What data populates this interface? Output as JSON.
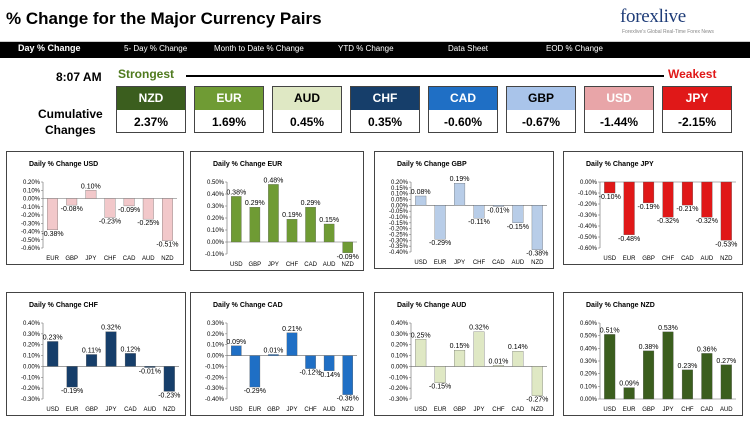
{
  "header": {
    "title": "% Change for the Major Currency Pairs",
    "logo_text": "forexlive",
    "logo_sub": "Forexlive's Global Real-Time Forex News"
  },
  "nav": [
    {
      "label": "Day % Change",
      "active": true
    },
    {
      "label": "5- Day % Change",
      "active": false
    },
    {
      "label": "Month to Date % Change",
      "active": false
    },
    {
      "label": "YTD % Change",
      "active": false
    },
    {
      "label": "Data Sheet",
      "active": false
    },
    {
      "label": "EOD % Change",
      "active": false
    }
  ],
  "summary": {
    "time": "8:07 AM",
    "cumulative_line1": "Cumulative",
    "cumulative_line2": "Changes",
    "strongest": "Strongest",
    "weakest": "Weakest",
    "currencies": [
      {
        "code": "NZD",
        "value": "2.37%",
        "color": "#3b5e1e"
      },
      {
        "code": "EUR",
        "value": "1.69%",
        "color": "#6f9b34"
      },
      {
        "code": "AUD",
        "value": "0.45%",
        "color": "#dfe8c4",
        "text_color": "#000000"
      },
      {
        "code": "CHF",
        "value": "0.35%",
        "color": "#163e6a"
      },
      {
        "code": "CAD",
        "value": "-0.60%",
        "color": "#1f6fc5"
      },
      {
        "code": "GBP",
        "value": "-0.67%",
        "color": "#a9c4ea",
        "text_color": "#000000"
      },
      {
        "code": "USD",
        "value": "-1.44%",
        "color": "#e8a5a8"
      },
      {
        "code": "JPY",
        "value": "-2.15%",
        "color": "#e01818"
      }
    ]
  },
  "chart_data": [
    {
      "type": "bar",
      "title": "Daily % Change USD",
      "categories": [
        "EUR",
        "GBP",
        "JPY",
        "CHF",
        "CAD",
        "AUD",
        "NZD"
      ],
      "values": [
        -0.38,
        -0.08,
        0.1,
        -0.23,
        -0.09,
        -0.25,
        -0.51
      ],
      "labels": [
        "-0.38%",
        "-0.08%",
        "0.10%",
        "-0.23%",
        "-0.09%",
        "-0.25%",
        "-0.51%"
      ],
      "ticks": [
        "0.20%",
        "0.10%",
        "0.00%",
        "-0.10%",
        "-0.20%",
        "-0.30%",
        "-0.40%",
        "-0.50%",
        "-0.60%"
      ],
      "ylim": [
        -0.6,
        0.2
      ],
      "color": "#f2c8ca"
    },
    {
      "type": "bar",
      "title": "Daily % Change EUR",
      "categories": [
        "USD",
        "GBP",
        "JPY",
        "CHF",
        "CAD",
        "AUD",
        "NZD"
      ],
      "values": [
        0.38,
        0.29,
        0.48,
        0.19,
        0.29,
        0.15,
        -0.09
      ],
      "labels": [
        "0.38%",
        "0.29%",
        "0.48%",
        "0.19%",
        "0.29%",
        "0.15%",
        "-0.09%"
      ],
      "ticks": [
        "0.50%",
        "0.40%",
        "0.30%",
        "0.20%",
        "0.10%",
        "0.00%",
        "-0.10%"
      ],
      "ylim": [
        -0.1,
        0.5
      ],
      "color": "#6f9b34"
    },
    {
      "type": "bar",
      "title": "Daily % Change GBP",
      "categories": [
        "USD",
        "EUR",
        "JPY",
        "CHF",
        "CAD",
        "AUD",
        "NZD"
      ],
      "values": [
        0.08,
        -0.29,
        0.19,
        -0.11,
        -0.01,
        -0.15,
        -0.38
      ],
      "labels": [
        "0.08%",
        "-0.29%",
        "0.19%",
        "-0.11%",
        "-0.01%",
        "-0.15%",
        "-0.38%"
      ],
      "ticks": [
        "0.20%",
        "0.15%",
        "0.10%",
        "0.05%",
        "0.00%",
        "-0.05%",
        "-0.10%",
        "-0.15%",
        "-0.20%",
        "-0.25%",
        "-0.30%",
        "-0.35%",
        "-0.40%"
      ],
      "ylim": [
        -0.4,
        0.2
      ],
      "color": "#b8cde8"
    },
    {
      "type": "bar",
      "title": "Daily % Change JPY",
      "categories": [
        "USD",
        "EUR",
        "GBP",
        "CHF",
        "CAD",
        "AUD",
        "NZD"
      ],
      "values": [
        -0.1,
        -0.48,
        -0.19,
        -0.32,
        -0.21,
        -0.32,
        -0.53
      ],
      "labels": [
        "-0.10%",
        "-0.48%",
        "-0.19%",
        "-0.32%",
        "-0.21%",
        "-0.32%",
        "-0.53%"
      ],
      "ticks": [
        "0.00%",
        "-0.10%",
        "-0.20%",
        "-0.30%",
        "-0.40%",
        "-0.50%",
        "-0.60%"
      ],
      "ylim": [
        -0.6,
        0.0
      ],
      "color": "#e01818"
    },
    {
      "type": "bar",
      "title": "Daily % Change CHF",
      "categories": [
        "USD",
        "EUR",
        "GBP",
        "JPY",
        "CAD",
        "AUD",
        "NZD"
      ],
      "values": [
        0.23,
        -0.19,
        0.11,
        0.32,
        0.12,
        -0.01,
        -0.23
      ],
      "labels": [
        "0.23%",
        "-0.19%",
        "0.11%",
        "0.32%",
        "0.12%",
        "-0.01%",
        "-0.23%"
      ],
      "ticks": [
        "0.40%",
        "0.30%",
        "0.20%",
        "0.10%",
        "0.00%",
        "-0.10%",
        "-0.20%",
        "-0.30%"
      ],
      "ylim": [
        -0.3,
        0.4
      ],
      "color": "#163e6a"
    },
    {
      "type": "bar",
      "title": "Daily % Change CAD",
      "categories": [
        "USD",
        "EUR",
        "GBP",
        "JPY",
        "CHF",
        "AUD",
        "NZD"
      ],
      "values": [
        0.09,
        -0.29,
        0.01,
        0.21,
        -0.12,
        -0.14,
        -0.36
      ],
      "labels": [
        "0.09%",
        "-0.29%",
        "0.01%",
        "0.21%",
        "-0.12%",
        "-0.14%",
        "-0.36%"
      ],
      "ticks": [
        "0.30%",
        "0.20%",
        "0.10%",
        "0.00%",
        "-0.10%",
        "-0.20%",
        "-0.30%",
        "-0.40%"
      ],
      "ylim": [
        -0.4,
        0.3
      ],
      "color": "#1f6fc5"
    },
    {
      "type": "bar",
      "title": "Daily % Change AUD",
      "categories": [
        "USD",
        "EUR",
        "GBP",
        "JPY",
        "CHF",
        "CAD",
        "NZD"
      ],
      "values": [
        0.25,
        -0.15,
        0.15,
        0.32,
        0.01,
        0.14,
        -0.27
      ],
      "labels": [
        "0.25%",
        "-0.15%",
        "0.15%",
        "0.32%",
        "0.01%",
        "0.14%",
        "-0.27%"
      ],
      "ticks": [
        "0.40%",
        "0.30%",
        "0.20%",
        "0.10%",
        "0.00%",
        "-0.10%",
        "-0.20%",
        "-0.30%"
      ],
      "ylim": [
        -0.3,
        0.4
      ],
      "color": "#dfe8c4"
    },
    {
      "type": "bar",
      "title": "Daily % Change NZD",
      "categories": [
        "USD",
        "EUR",
        "GBP",
        "JPY",
        "CHF",
        "CAD",
        "AUD"
      ],
      "values": [
        0.51,
        0.09,
        0.38,
        0.53,
        0.23,
        0.36,
        0.27
      ],
      "labels": [
        "0.51%",
        "0.09%",
        "0.38%",
        "0.53%",
        "0.23%",
        "0.36%",
        "0.27%"
      ],
      "ticks": [
        "0.60%",
        "0.50%",
        "0.40%",
        "0.30%",
        "0.20%",
        "0.10%",
        "0.00%"
      ],
      "ylim": [
        0.0,
        0.6
      ],
      "color": "#3b5e1e"
    }
  ]
}
